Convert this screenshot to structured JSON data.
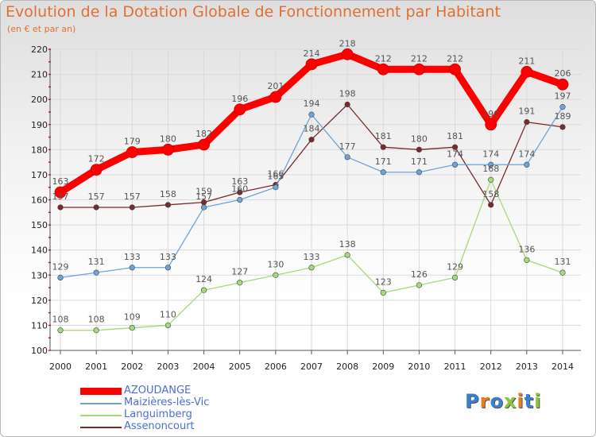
{
  "title": "Evolution de la Dotation Globale de Fonctionnement par Habitant",
  "subtitle": "(en € et par an)",
  "logo": {
    "letters": [
      {
        "ch": "P",
        "color": "#3b7fd0"
      },
      {
        "ch": "r",
        "color": "#e87d1e"
      },
      {
        "ch": "o",
        "color": "#3b7fd0"
      },
      {
        "ch": "x",
        "color": "#8cc63f"
      },
      {
        "ch": "i",
        "color": "#e87d1e"
      },
      {
        "ch": "t",
        "color": "#3b7fd0"
      },
      {
        "ch": "i",
        "color": "#8cc63f"
      }
    ]
  },
  "colors": {
    "grid": "#d9d9d9",
    "axis": "#555555",
    "tick_label": "#222222",
    "value_label": "#555555",
    "left_tick_marks": "#c01010"
  },
  "chart_data": {
    "type": "line",
    "title": "Evolution de la Dotation Globale de Fonctionnement par Habitant",
    "subtitle": "(en € et par an)",
    "xlabel": "",
    "ylabel": "",
    "x": [
      "2000",
      "2001",
      "2002",
      "2003",
      "2004",
      "2005",
      "2006",
      "2007",
      "2008",
      "2009",
      "2010",
      "2011",
      "2012",
      "2013",
      "2014"
    ],
    "ylim": [
      100,
      220
    ],
    "yticks": [
      100,
      110,
      120,
      130,
      140,
      150,
      160,
      170,
      180,
      190,
      200,
      210,
      220
    ],
    "grid": true,
    "legend_position": "bottom-left",
    "series": [
      {
        "name": "AZOUDANGE",
        "color": "#ff0000",
        "values": [
          163,
          172,
          179,
          180,
          182,
          196,
          201,
          214,
          218,
          212,
          212,
          212,
          190,
          211,
          206
        ]
      },
      {
        "name": "Maizières-lès-Vic",
        "color": "#6ea3d8",
        "values": [
          129,
          131,
          133,
          133,
          157,
          160,
          165,
          194,
          177,
          171,
          171,
          174,
          174,
          174,
          197
        ]
      },
      {
        "name": "Languimberg",
        "color": "#a6d97a",
        "values": [
          108,
          108,
          109,
          110,
          124,
          127,
          130,
          133,
          138,
          123,
          126,
          129,
          168,
          136,
          131
        ]
      },
      {
        "name": "Assenoncourt",
        "color": "#7a2a2a",
        "values": [
          157,
          157,
          157,
          158,
          159,
          163,
          166,
          184,
          198,
          181,
          180,
          181,
          158,
          191,
          189
        ]
      }
    ]
  }
}
